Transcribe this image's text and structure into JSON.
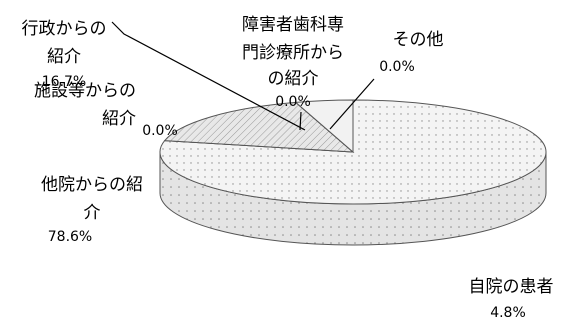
{
  "chart_data": {
    "type": "pie",
    "style": "3d-pie",
    "legend": "none",
    "slices": [
      {
        "label": "自院の患者",
        "value_text": "78.6%",
        "value": 78.6,
        "fill": "dots"
      },
      {
        "label": "他院からの紹介",
        "value_text": "0.0%",
        "value": 0.0,
        "fill": "none"
      },
      {
        "label": "施設等からの紹介",
        "value_text": "16.7%",
        "value": 16.7,
        "fill": "hatch"
      },
      {
        "label": "行政からの紹介",
        "value_text": "0.0%",
        "value": 0.0,
        "fill": "none"
      },
      {
        "label": "障害者歯科専門診療所からの紹介",
        "value_text": "0.0%",
        "value": 0.0,
        "fill": "none"
      },
      {
        "label": "その他",
        "value_text": "4.8%",
        "value": 4.8,
        "fill": "solid"
      }
    ],
    "colors": {
      "slice_fill": "#f2f2f2",
      "side_fill": "#e6e6e6",
      "outline": "#555555",
      "pattern": "#8c8c8c"
    }
  }
}
